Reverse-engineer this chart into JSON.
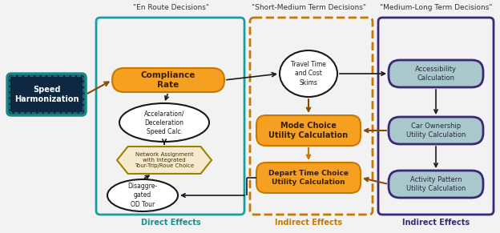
{
  "title_en_route": "\"En Route Decisions\"",
  "title_short_medium": "\"Short-Medium Term Decisions\"",
  "title_medium_long": "\"Medium-Long Term Decisions\"",
  "label_speed_harm": "Speed\nHarmonization",
  "label_compliance": "Compliance\nRate",
  "label_accel": "Accelaration/\nDeceleration\nSpeed Calc.",
  "label_network": "Network Assignment\nwith Integrated\nTour-Trip/Roue Choice",
  "label_disagg": "Disaggre-\ngated\nOD Tour",
  "label_travel_time": "Travel Time\nand Cost\nSkims",
  "label_mode_choice": "Mode Choice\nUtility Calculation",
  "label_depart_time": "Depart Time Choice\nUtility Calculation",
  "label_accessibility": "Accessibility\nCalculation",
  "label_car_ownership": "Car Ownership\nUtility Calculation",
  "label_activity": "Activity Pattern\nUtility Calculation",
  "label_direct": "Direct Effects",
  "label_indirect1": "Indirect Effects",
  "label_indirect2": "Indirect Effects",
  "color_speed_bg": "#0d2840",
  "color_speed_border": "#1a8888",
  "color_orange": "#f5a020",
  "color_orange_edge": "#c87800",
  "color_hex_fill": "#f5ead0",
  "color_hex_edge": "#a08000",
  "color_ml_fill": "#a8c8cc",
  "color_ml_edge": "#3a2878",
  "color_teal": "#159090",
  "color_orange_text": "#c87800",
  "color_purple_text": "#3a2878",
  "color_en_border": "#15a0a0",
  "color_sm_border": "#c87800",
  "color_ml_border": "#3a2878",
  "color_arrow_dark": "#1a1a1a",
  "color_arrow_brown": "#8B4A00",
  "bg_color": "#f2f2f2"
}
